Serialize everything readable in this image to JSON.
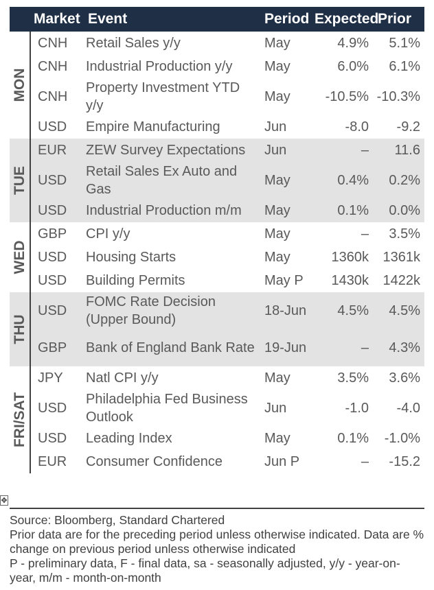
{
  "header": {
    "market": "Market",
    "event": "Event",
    "period": "Period",
    "expected": "Expected",
    "prior": "Prior"
  },
  "days": [
    {
      "label": "MON",
      "rows": [
        {
          "market": "CNH",
          "event": "Retail Sales y/y",
          "period": "May",
          "expected": "4.9%",
          "prior": "5.1%"
        },
        {
          "market": "CNH",
          "event": "Industrial Production y/y",
          "period": "May",
          "expected": "6.0%",
          "prior": "6.1%"
        },
        {
          "market": "CNH",
          "event": "Property Investment YTD y/y",
          "period": "May",
          "expected": "-10.5%",
          "prior": "-10.3%"
        },
        {
          "market": "USD",
          "event": "Empire Manufacturing",
          "period": "Jun",
          "expected": "-8.0",
          "prior": "-9.2"
        }
      ]
    },
    {
      "label": "TUE",
      "rows": [
        {
          "market": "EUR",
          "event": "ZEW Survey Expectations",
          "period": "Jun",
          "expected": "–",
          "prior": "11.6"
        },
        {
          "market": "USD",
          "event": "Retail Sales Ex Auto and Gas",
          "period": "May",
          "expected": "0.4%",
          "prior": "0.2%"
        },
        {
          "market": "USD",
          "event": "Industrial Production m/m",
          "period": "May",
          "expected": "0.1%",
          "prior": "0.0%"
        }
      ]
    },
    {
      "label": "WED",
      "rows": [
        {
          "market": "GBP",
          "event": "CPI y/y",
          "period": "May",
          "expected": "–",
          "prior": "3.5%"
        },
        {
          "market": "USD",
          "event": "Housing Starts",
          "period": "May",
          "expected": "1360k",
          "prior": "1361k"
        },
        {
          "market": "USD",
          "event": "Building Permits",
          "period": "May P",
          "expected": "1430k",
          "prior": "1422k"
        }
      ]
    },
    {
      "label": "THU",
      "rows": [
        {
          "market": "USD",
          "event": "FOMC Rate Decision (Upper Bound)",
          "period": "18-Jun",
          "expected": "4.5%",
          "prior": "4.5%"
        },
        {
          "market": "GBP",
          "event": "Bank of England Bank Rate",
          "period": "19-Jun",
          "expected": "–",
          "prior": "4.3%"
        }
      ]
    },
    {
      "label": "FRI/SAT",
      "rows": [
        {
          "market": "JPY",
          "event": "Natl CPI y/y",
          "period": "May",
          "expected": "3.5%",
          "prior": "3.6%"
        },
        {
          "market": "USD",
          "event": "Philadelphia Fed Business Outlook",
          "period": "Jun",
          "expected": "-1.0",
          "prior": "-4.0"
        },
        {
          "market": "USD",
          "event": "Leading Index",
          "period": "May",
          "expected": "0.1%",
          "prior": "-1.0%"
        },
        {
          "market": "EUR",
          "event": "Consumer Confidence",
          "period": "Jun P",
          "expected": "–",
          "prior": "-15.2"
        }
      ]
    }
  ],
  "notes": {
    "source": "Source: Bloomberg, Standard Chartered",
    "note1": "Prior data are for the preceding period unless otherwise indicated. Data are % change on previous period unless otherwise indicated",
    "note2": "P - preliminary data, F - final data, sa - seasonally adjusted, y/y - year-on-year, m/m - month-on-month"
  }
}
